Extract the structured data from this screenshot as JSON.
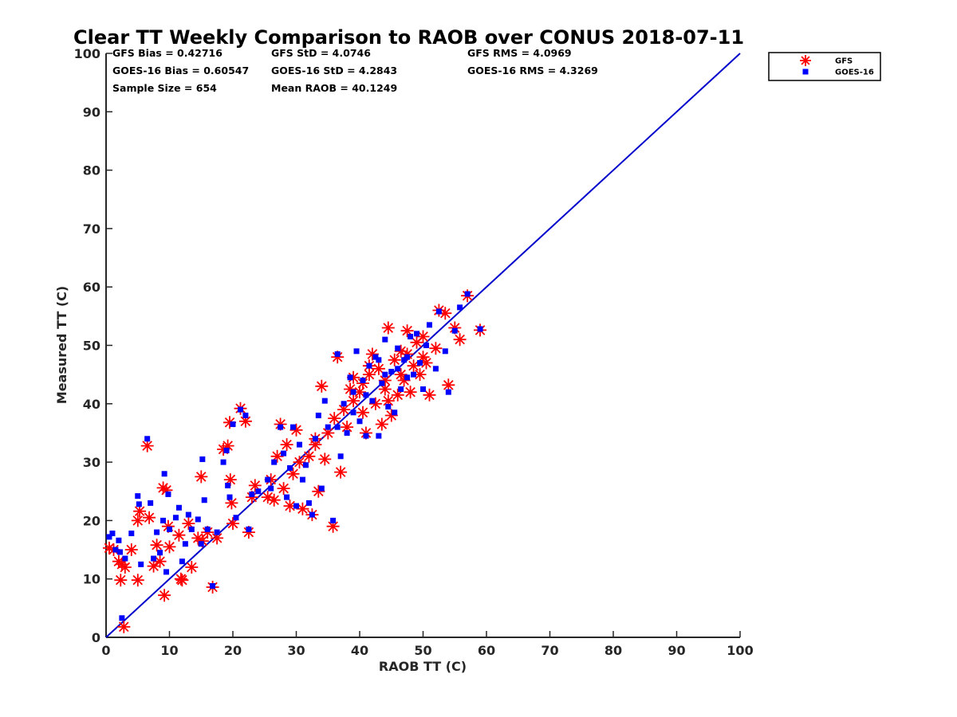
{
  "chart_data": {
    "type": "scatter",
    "title": "Clear TT Weekly Comparison to RAOB over CONUS 2018-07-11",
    "xlabel": "RAOB TT (C)",
    "ylabel": "Measured TT (C)",
    "xlim": [
      0,
      100
    ],
    "ylim": [
      0,
      100
    ],
    "xticks": [
      0,
      10,
      20,
      30,
      40,
      50,
      60,
      70,
      80,
      90,
      100
    ],
    "yticks": [
      0,
      10,
      20,
      30,
      40,
      50,
      60,
      70,
      80,
      90,
      100
    ],
    "grid": false,
    "legend_position": "outside top-right",
    "reference_line": {
      "name": "1:1 line",
      "from": [
        0,
        0
      ],
      "to": [
        100,
        100
      ],
      "color": "#0000cc"
    },
    "stats": [
      [
        "GFS Bias = 0.42716",
        "GFS StD = 4.0746",
        "GFS RMS = 4.0969"
      ],
      [
        "GOES-16 Bias = 0.60547",
        "GOES-16 StD = 4.2843",
        "GOES-16 RMS = 4.3269"
      ],
      [
        "Sample Size = 654",
        "Mean RAOB = 40.1249"
      ]
    ],
    "series": [
      {
        "name": "GFS",
        "marker": "asterisk",
        "color": "#ff0000",
        "points": [
          [
            0.5,
            15.3
          ],
          [
            1.2,
            15.0
          ],
          [
            2.0,
            13.0
          ],
          [
            2.3,
            9.8
          ],
          [
            2.5,
            12.5
          ],
          [
            2.8,
            1.8
          ],
          [
            3.0,
            12.0
          ],
          [
            4.0,
            15.0
          ],
          [
            5.0,
            20.0
          ],
          [
            5.0,
            9.8
          ],
          [
            5.3,
            21.6
          ],
          [
            6.5,
            32.8
          ],
          [
            6.8,
            20.5
          ],
          [
            7.5,
            12.2
          ],
          [
            8.0,
            15.8
          ],
          [
            8.5,
            13.0
          ],
          [
            9.0,
            25.6
          ],
          [
            9.2,
            7.2
          ],
          [
            9.5,
            25.2
          ],
          [
            9.8,
            19.0
          ],
          [
            10.0,
            15.5
          ],
          [
            11.5,
            17.5
          ],
          [
            11.8,
            10.0
          ],
          [
            12.0,
            9.8
          ],
          [
            13.0,
            19.5
          ],
          [
            13.5,
            12.0
          ],
          [
            14.5,
            17.0
          ],
          [
            15.0,
            27.5
          ],
          [
            15.2,
            16.5
          ],
          [
            16.0,
            18.0
          ],
          [
            16.8,
            8.6
          ],
          [
            17.5,
            17.0
          ],
          [
            18.5,
            32.2
          ],
          [
            19.2,
            32.8
          ],
          [
            19.5,
            36.8
          ],
          [
            19.6,
            27.0
          ],
          [
            19.8,
            23.0
          ],
          [
            20.0,
            19.5
          ],
          [
            21.2,
            39.2
          ],
          [
            22.0,
            37.0
          ],
          [
            22.5,
            18.0
          ],
          [
            23.0,
            24.0
          ],
          [
            23.5,
            26.0
          ],
          [
            25.5,
            24.0
          ],
          [
            26.0,
            27.0
          ],
          [
            26.5,
            23.5
          ],
          [
            27.0,
            31.0
          ],
          [
            27.5,
            36.5
          ],
          [
            28.0,
            25.5
          ],
          [
            28.5,
            33.0
          ],
          [
            29.0,
            22.5
          ],
          [
            29.5,
            28.0
          ],
          [
            30.0,
            35.5
          ],
          [
            30.5,
            30.0
          ],
          [
            31.0,
            22.0
          ],
          [
            32.0,
            31.0
          ],
          [
            32.5,
            21.0
          ],
          [
            33.0,
            33.0
          ],
          [
            33.5,
            25.0
          ],
          [
            34.0,
            43.0
          ],
          [
            34.5,
            30.5
          ],
          [
            35.0,
            35.0
          ],
          [
            35.8,
            19.0
          ],
          [
            36.5,
            48.0
          ],
          [
            37.0,
            28.3
          ],
          [
            37.5,
            39.0
          ],
          [
            38.0,
            36.0
          ],
          [
            39.0,
            44.5
          ],
          [
            40.0,
            42.0
          ],
          [
            40.5,
            38.5
          ],
          [
            41.0,
            35.0
          ],
          [
            41.5,
            45.0
          ],
          [
            42.0,
            48.5
          ],
          [
            42.5,
            40.0
          ],
          [
            43.0,
            46.0
          ],
          [
            43.5,
            36.5
          ],
          [
            44.0,
            42.5
          ],
          [
            44.5,
            53.0
          ],
          [
            45.0,
            38.0
          ],
          [
            45.5,
            47.5
          ],
          [
            46.0,
            41.5
          ],
          [
            46.5,
            49.0
          ],
          [
            47.0,
            44.0
          ],
          [
            47.5,
            52.5
          ],
          [
            48.0,
            42.0
          ],
          [
            48.5,
            46.5
          ],
          [
            49.0,
            50.5
          ],
          [
            49.5,
            45.0
          ],
          [
            50.0,
            51.5
          ],
          [
            50.5,
            47.0
          ],
          [
            51.0,
            41.5
          ],
          [
            52.0,
            49.5
          ],
          [
            52.5,
            56.0
          ],
          [
            53.5,
            55.5
          ],
          [
            54.0,
            43.2
          ],
          [
            55.0,
            53.0
          ],
          [
            55.8,
            51.0
          ],
          [
            57.0,
            58.5
          ],
          [
            59.0,
            52.6
          ],
          [
            44.0,
            44.0
          ],
          [
            40.5,
            43.5
          ],
          [
            47.5,
            48.5
          ],
          [
            39.0,
            40.5
          ],
          [
            36.0,
            37.5
          ],
          [
            33.0,
            34.0
          ],
          [
            44.5,
            40.5
          ],
          [
            41.5,
            46.5
          ],
          [
            46.5,
            45.0
          ],
          [
            38.5,
            42.5
          ],
          [
            50.0,
            48.0
          ]
        ]
      },
      {
        "name": "GOES-16",
        "marker": "square",
        "color": "#0000ff",
        "points": [
          [
            0.5,
            17.2
          ],
          [
            1.0,
            17.8
          ],
          [
            1.5,
            15.0
          ],
          [
            2.0,
            16.6
          ],
          [
            2.2,
            14.6
          ],
          [
            2.5,
            3.3
          ],
          [
            3.0,
            13.5
          ],
          [
            4.0,
            17.8
          ],
          [
            5.0,
            24.2
          ],
          [
            5.2,
            22.8
          ],
          [
            5.5,
            12.5
          ],
          [
            6.5,
            34.0
          ],
          [
            7.0,
            23.0
          ],
          [
            7.5,
            13.5
          ],
          [
            8.0,
            18.0
          ],
          [
            8.5,
            14.5
          ],
          [
            9.0,
            20.0
          ],
          [
            9.2,
            28.0
          ],
          [
            9.5,
            11.2
          ],
          [
            9.8,
            24.5
          ],
          [
            10.0,
            18.5
          ],
          [
            11.0,
            20.5
          ],
          [
            11.5,
            22.2
          ],
          [
            12.0,
            13.0
          ],
          [
            12.5,
            16.0
          ],
          [
            13.0,
            21.0
          ],
          [
            13.5,
            18.5
          ],
          [
            14.5,
            20.2
          ],
          [
            15.0,
            16.0
          ],
          [
            15.2,
            30.5
          ],
          [
            15.5,
            23.5
          ],
          [
            16.0,
            18.5
          ],
          [
            16.8,
            8.8
          ],
          [
            17.5,
            18.0
          ],
          [
            18.5,
            30.0
          ],
          [
            19.0,
            32.0
          ],
          [
            19.2,
            26.0
          ],
          [
            19.5,
            24.0
          ],
          [
            20.0,
            36.5
          ],
          [
            20.5,
            20.5
          ],
          [
            21.2,
            39.0
          ],
          [
            22.0,
            38.0
          ],
          [
            22.5,
            18.5
          ],
          [
            23.0,
            24.5
          ],
          [
            24.0,
            25.0
          ],
          [
            25.5,
            27.0
          ],
          [
            26.0,
            25.5
          ],
          [
            26.5,
            30.0
          ],
          [
            27.5,
            36.0
          ],
          [
            28.0,
            31.5
          ],
          [
            28.5,
            24.0
          ],
          [
            29.0,
            29.0
          ],
          [
            29.5,
            36.0
          ],
          [
            30.0,
            22.5
          ],
          [
            30.5,
            33.0
          ],
          [
            31.0,
            27.0
          ],
          [
            31.5,
            29.5
          ],
          [
            32.0,
            23.0
          ],
          [
            32.5,
            21.0
          ],
          [
            33.0,
            34.0
          ],
          [
            33.5,
            38.0
          ],
          [
            34.0,
            25.5
          ],
          [
            34.5,
            40.5
          ],
          [
            35.0,
            36.0
          ],
          [
            35.8,
            20.0
          ],
          [
            36.5,
            48.5
          ],
          [
            37.0,
            31.0
          ],
          [
            37.5,
            40.0
          ],
          [
            38.0,
            35.0
          ],
          [
            38.5,
            44.5
          ],
          [
            39.0,
            42.0
          ],
          [
            39.5,
            49.0
          ],
          [
            40.0,
            37.0
          ],
          [
            40.5,
            44.0
          ],
          [
            41.0,
            34.5
          ],
          [
            41.5,
            46.5
          ],
          [
            42.0,
            40.5
          ],
          [
            42.5,
            48.0
          ],
          [
            43.0,
            34.5
          ],
          [
            43.5,
            43.5
          ],
          [
            44.0,
            51.0
          ],
          [
            44.5,
            39.5
          ],
          [
            45.0,
            45.5
          ],
          [
            45.5,
            38.5
          ],
          [
            46.0,
            49.5
          ],
          [
            46.5,
            42.5
          ],
          [
            47.0,
            47.5
          ],
          [
            47.5,
            44.5
          ],
          [
            48.0,
            51.5
          ],
          [
            48.5,
            45.0
          ],
          [
            49.0,
            52.0
          ],
          [
            49.5,
            47.0
          ],
          [
            50.0,
            42.5
          ],
          [
            50.5,
            50.0
          ],
          [
            51.0,
            53.5
          ],
          [
            52.0,
            46.0
          ],
          [
            52.5,
            55.8
          ],
          [
            53.5,
            49.0
          ],
          [
            54.0,
            42.0
          ],
          [
            55.0,
            52.5
          ],
          [
            55.8,
            56.5
          ],
          [
            57.0,
            58.8
          ],
          [
            59.0,
            52.8
          ],
          [
            44.0,
            45.0
          ],
          [
            41.0,
            41.5
          ],
          [
            46.0,
            46.0
          ],
          [
            39.0,
            38.5
          ],
          [
            43.0,
            47.5
          ],
          [
            47.5,
            48.0
          ],
          [
            36.5,
            36.0
          ]
        ]
      }
    ]
  }
}
